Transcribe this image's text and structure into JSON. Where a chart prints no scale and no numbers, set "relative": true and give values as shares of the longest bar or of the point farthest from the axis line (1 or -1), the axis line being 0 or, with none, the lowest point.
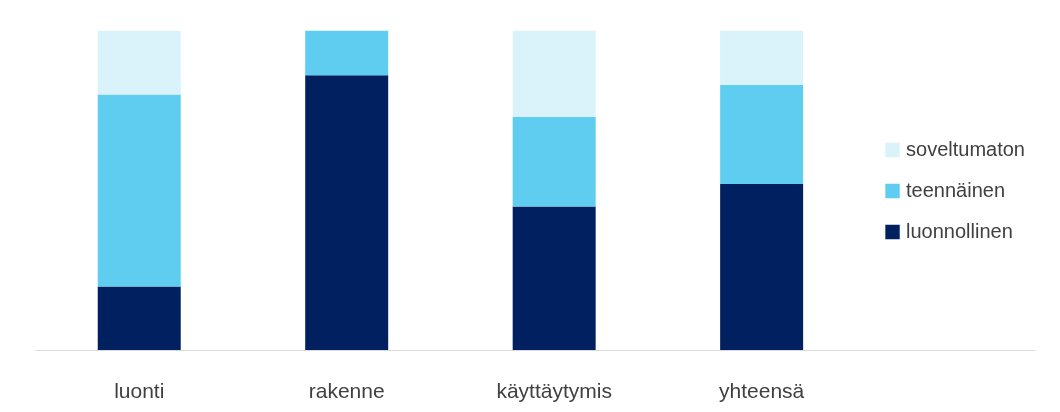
{
  "chart_data": {
    "type": "bar",
    "stacked": true,
    "relative": true,
    "categories": [
      "luonti",
      "rakenne",
      "käyttäytymis",
      "yhteensä"
    ],
    "series": [
      {
        "name": "luonnollinen",
        "color": "#002060",
        "values": [
          0.2,
          0.86,
          0.45,
          0.52
        ]
      },
      {
        "name": "teennäinen",
        "color": "#5ecdf0",
        "values": [
          0.6,
          0.14,
          0.28,
          0.31
        ]
      },
      {
        "name": "soveltumaton",
        "color": "#daf3fa",
        "values": [
          0.2,
          0,
          0.27,
          0.17
        ]
      }
    ],
    "legend": "right",
    "grid": false
  }
}
